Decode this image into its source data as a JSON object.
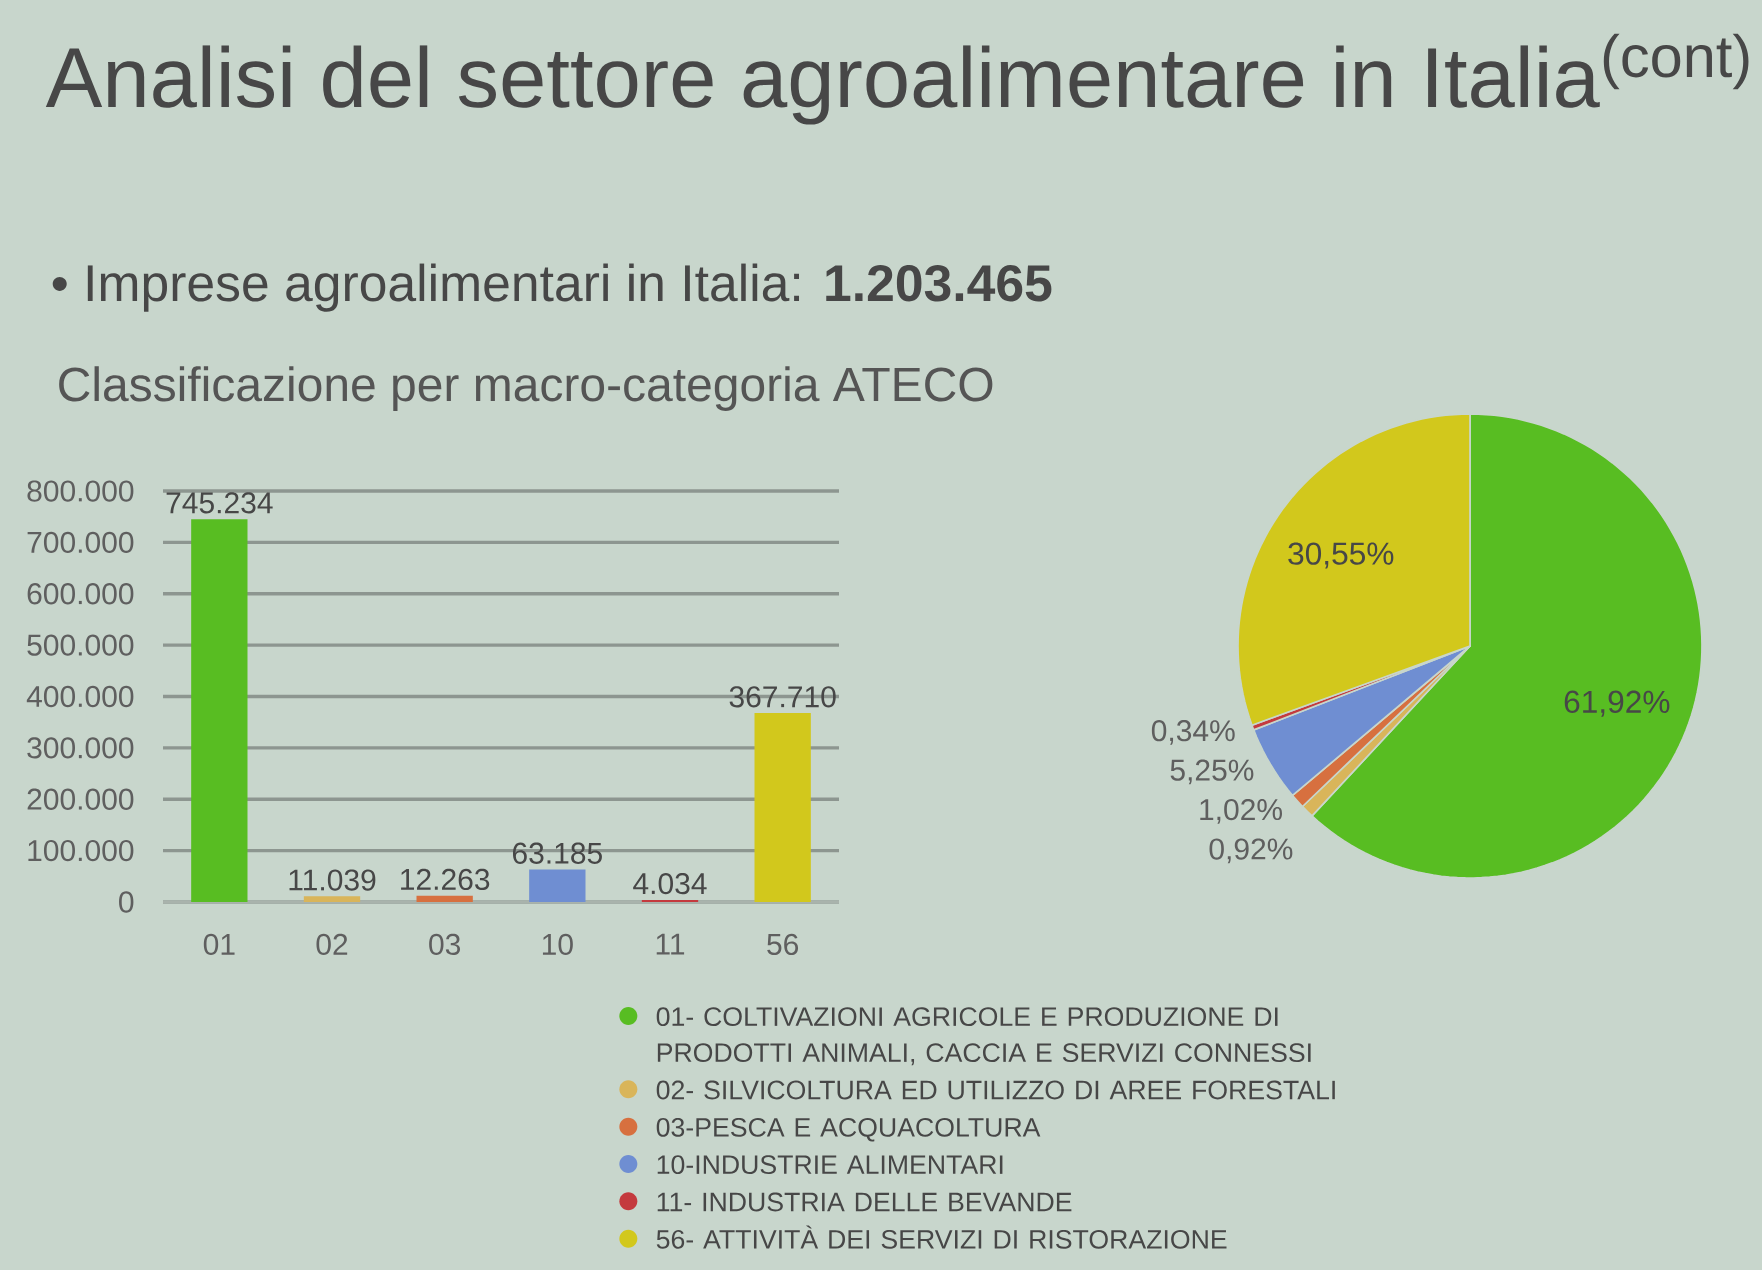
{
  "chart_data": [
    {
      "type": "bar",
      "title": "Analisi del settore agroalimentare in Italia$^{(cont)}$",
      "subtitle": "• Imprese agroalimentari in Italia: **1.203.465**",
      "annotations": [
        "Classificazione per macro-categoria ATECO"
      ],
      "categories": [
        "01",
        "02",
        "03",
        "10",
        "11",
        "56"
      ],
      "values": [
        745234,
        11039,
        12263,
        63185,
        4034,
        367710
      ],
      "colors": [
        "#58bd22",
        "#d9b55a",
        "#d7703f",
        "#6f8ed2",
        "#c43a3e",
        "#d2c81c"
      ],
      "value_labels": [
        "745.234",
        "11.039",
        "12.263",
        "63.185",
        "4.034",
        "367.710"
      ],
      "ylim": [
        0,
        800000
      ],
      "yticks": [
        0,
        {
          "value": 100000,
          "label": "100.000"
        },
        {
          "value": 200000,
          "label": "200.000"
        },
        {
          "value": 300000,
          "label": "300.000"
        },
        {
          "value": 400000,
          "label": "400.000"
        },
        {
          "value": 500000,
          "label": "500.000"
        },
        {
          "value": 600000,
          "label": "600.000"
        },
        {
          "value": 700000,
          "label": "700.000"
        },
        {
          "value": 800000,
          "label": "800.000"
        }
      ],
      "grid": "y"
    },
    {
      "type": "pie",
      "categories": [
        "01- COLTIVAZIONI AGRICOLE E PRODUZIONE DI PRODOTTI ANIMALI, CACCIA E SERVIZI CONNESSI",
        "02- SILVICOLTURA ED UTILIZZO DI AREE FORESTALI",
        "03-PESCA E ACQUACOLTURA",
        "10-INDUSTRIE ALIMENTARI",
        "11- INDUSTRIA DELLE BEVANDE",
        "56- ATTIVITÀ DEI SERVIZI DI RISTORAZIONE"
      ],
      "values": [
        61.92,
        0.92,
        1.02,
        5.25,
        0.34,
        30.55
      ],
      "colors": [
        "#58bd22",
        "#d9b55a",
        "#d7703f",
        "#6f8ed2",
        "#c43a3e",
        "#d2c81c"
      ],
      "value_labels": [
        "61,92%",
        "0,92%",
        "1,02%",
        "5,25%",
        "0,34%",
        "30,55%"
      ],
      "legend": "bottom left"
    }
  ]
}
